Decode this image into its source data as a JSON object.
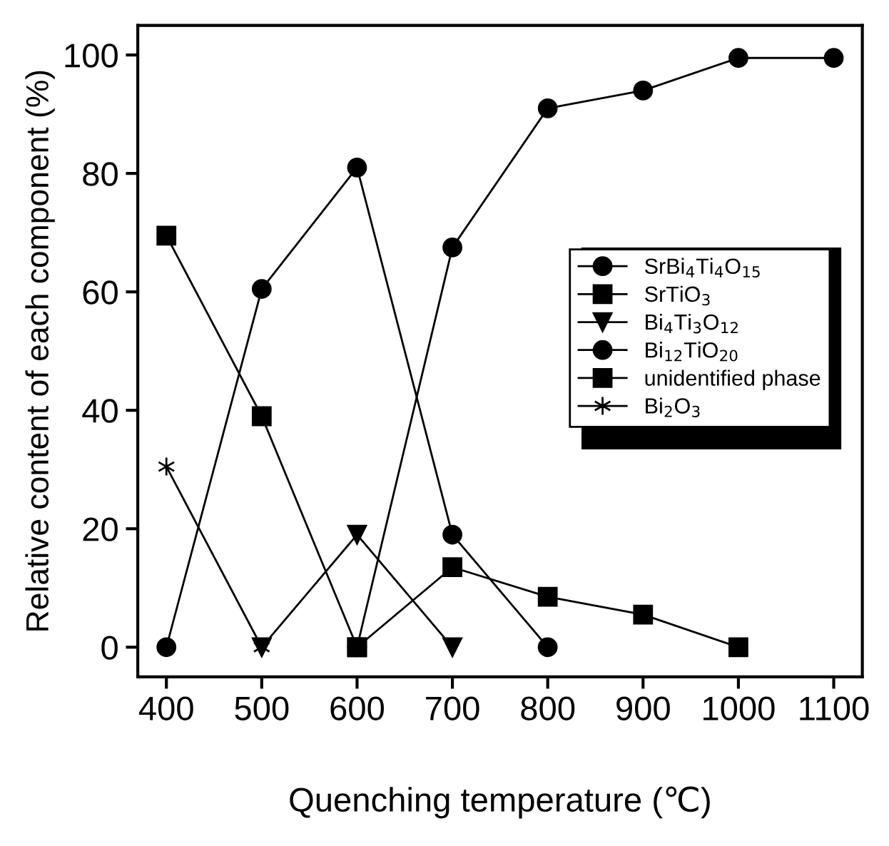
{
  "chart_data": {
    "type": "line",
    "xlabel": "Quenching temperature (℃)",
    "ylabel": "Relative content of each component (%)",
    "xlim": [
      370,
      1130
    ],
    "ylim": [
      -5,
      105
    ],
    "xticks": [
      400,
      500,
      600,
      700,
      800,
      900,
      1000,
      1100
    ],
    "yticks": [
      0,
      20,
      40,
      60,
      80,
      100
    ],
    "grid": false,
    "legend": "right",
    "line_style": "solid",
    "series": [
      {
        "name": "SrBi$_{4}$Ti$_{4}$O$_{15}$",
        "color": "#000000",
        "marker": "circle",
        "x": [
          600,
          700,
          800,
          900,
          1000,
          1100
        ],
        "values": [
          0,
          67.5,
          91,
          94,
          99.5,
          99.5
        ]
      },
      {
        "name": "SrTiO$_{3}$",
        "color": "#000000",
        "marker": "square",
        "x": [
          600,
          700,
          800,
          900,
          1000
        ],
        "values": [
          0,
          13.5,
          8.5,
          5.5,
          0
        ]
      },
      {
        "name": "Bi$_{4}$Ti$_{3}$O$_{12}$",
        "color": "#000000",
        "marker": "triangle",
        "x": [
          500,
          600,
          700
        ],
        "values": [
          0,
          19,
          0
        ]
      },
      {
        "name": "Bi$_{12}$TiO$_{20}$",
        "color": "#000000",
        "marker": "circle",
        "x": [
          400,
          500,
          600,
          700,
          800
        ],
        "values": [
          0,
          60.5,
          81,
          19,
          0
        ]
      },
      {
        "name": "unidentified phase",
        "color": "#000000",
        "marker": "square",
        "x": [
          400,
          500,
          600
        ],
        "values": [
          69.5,
          39,
          0
        ]
      },
      {
        "name": "Bi$_{2}$O$_{3}$",
        "color": "#000000",
        "marker": "cross",
        "x": [
          400,
          500
        ],
        "values": [
          30.5,
          0
        ]
      }
    ]
  }
}
